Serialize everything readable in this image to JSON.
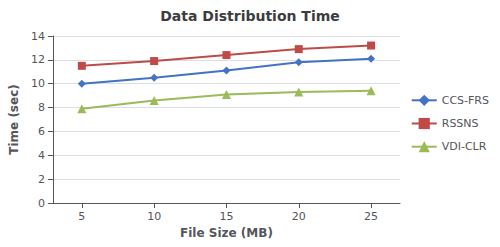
{
  "chart_data": {
    "type": "line",
    "title": "Data Distribution Time",
    "xlabel": "File Size (MB)",
    "ylabel": "Time (sec)",
    "x": [
      5,
      10,
      15,
      20,
      25
    ],
    "series": [
      {
        "name": "CCS-FRS",
        "color": "#4472C4",
        "marker": "diamond",
        "values": [
          10.0,
          10.5,
          11.1,
          11.8,
          12.1
        ]
      },
      {
        "name": "RSSNS",
        "color": "#BE4B48",
        "marker": "square",
        "values": [
          11.5,
          11.9,
          12.4,
          12.9,
          13.2
        ]
      },
      {
        "name": "VDI-CLR",
        "color": "#9BBB59",
        "marker": "triangle",
        "values": [
          7.9,
          8.6,
          9.1,
          9.3,
          9.4
        ]
      }
    ],
    "xlim": [
      3,
      27
    ],
    "xticks": [
      5,
      10,
      15,
      20,
      25
    ],
    "ylim": [
      0,
      14
    ],
    "yticks": [
      0,
      2,
      4,
      6,
      8,
      10,
      12,
      14
    ],
    "grid": "y",
    "legend": "right"
  }
}
